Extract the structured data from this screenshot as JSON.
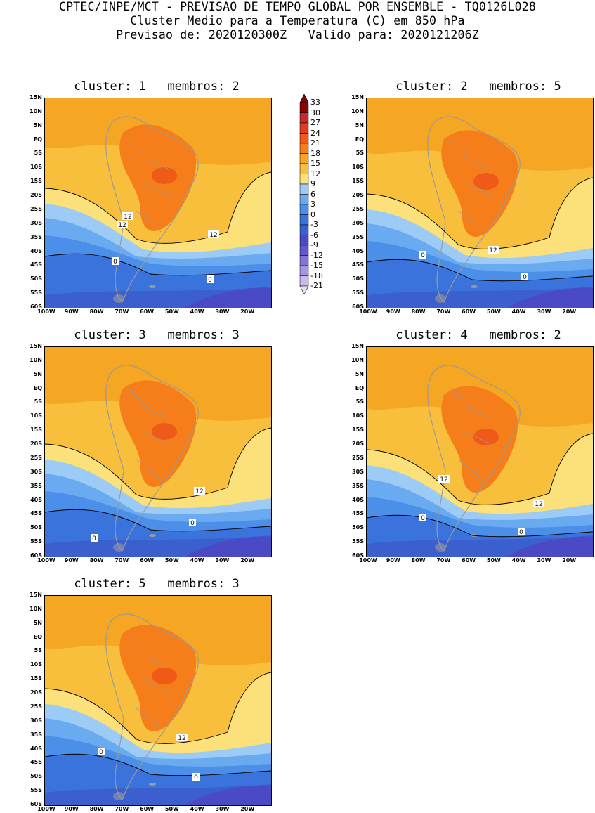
{
  "header": {
    "line1": "CPTEC/INPE/MCT - PREVISAO DE TEMPO GLOBAL POR ENSEMBLE - TQ0126L028",
    "line2": "Cluster Medio para a Temperatura (C) em 850 hPa",
    "line3": "Previsao de: 2020120300Z   Valido para: 2020121206Z"
  },
  "lat_labels": [
    "15N",
    "10N",
    "5N",
    "EQ",
    "5S",
    "10S",
    "15S",
    "20S",
    "25S",
    "30S",
    "35S",
    "40S",
    "45S",
    "50S",
    "55S",
    "60S"
  ],
  "lon_labels": [
    "100W",
    "90W",
    "80W",
    "70W",
    "60W",
    "50W",
    "40W",
    "30W",
    "20W"
  ],
  "colorbar": {
    "labels": [
      "33",
      "30",
      "27",
      "24",
      "21",
      "18",
      "15",
      "12",
      "9",
      "6",
      "3",
      "0",
      "-3",
      "-6",
      "-9",
      "-12",
      "-15",
      "-18",
      "-21"
    ],
    "colors": [
      "#8b0000",
      "#c8282a",
      "#e23a1a",
      "#f05a19",
      "#f57e1b",
      "#f5a623",
      "#f8bf3c",
      "#fce07a",
      "#9ccbf5",
      "#6aaaf0",
      "#4b8fe8",
      "#3a73dc",
      "#3b5fcf",
      "#4a49c6",
      "#6556cc",
      "#8573d6",
      "#a895e1",
      "#cab9ec",
      "#e6dcf6"
    ]
  },
  "panels": [
    {
      "title": "cluster: 1   membros: 2",
      "contours": [
        "12",
        "12",
        "12",
        "0",
        "0"
      ]
    },
    {
      "title": "cluster: 2   membros: 5",
      "contours": [
        "12",
        "0",
        "0"
      ]
    },
    {
      "title": "cluster: 3   membros: 3",
      "contours": [
        "12",
        "0",
        "0"
      ]
    },
    {
      "title": "cluster: 4   membros: 2",
      "contours": [
        "12",
        "12",
        "0",
        "0"
      ]
    },
    {
      "title": "cluster: 5   membros: 3",
      "contours": [
        "12",
        "0",
        "0"
      ]
    }
  ]
}
